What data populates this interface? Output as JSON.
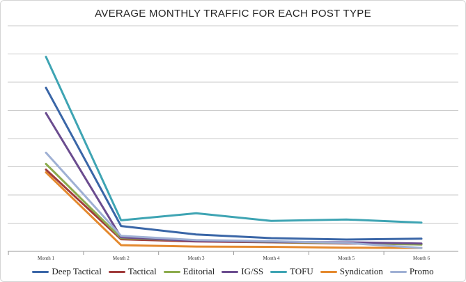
{
  "chart_data": {
    "type": "line",
    "title": "AVERAGE MONTHLY TRAFFIC FOR EACH POST TYPE",
    "xlabel": "",
    "ylabel": "",
    "categories": [
      "Month 1",
      "Month 2",
      "Month 3",
      "Month 4",
      "Month 5",
      "Month 6"
    ],
    "ylim": [
      0,
      8
    ],
    "grid": true,
    "legend_position": "bottom",
    "series": [
      {
        "name": "Deep Tactical",
        "color": "#3a66a7",
        "values": [
          5.8,
          0.9,
          0.6,
          0.47,
          0.42,
          0.45
        ]
      },
      {
        "name": "Tactical",
        "color": "#a03b3b",
        "values": [
          2.9,
          0.43,
          0.35,
          0.32,
          0.28,
          0.25
        ]
      },
      {
        "name": "Editorial",
        "color": "#8cab4c",
        "values": [
          3.1,
          0.47,
          0.38,
          0.33,
          0.3,
          0.24
        ]
      },
      {
        "name": "IG/SS",
        "color": "#6b4c8f",
        "values": [
          4.9,
          0.5,
          0.37,
          0.34,
          0.32,
          0.28
        ]
      },
      {
        "name": "TOFU",
        "color": "#3ea4b3",
        "values": [
          6.9,
          1.1,
          1.35,
          1.08,
          1.13,
          1.02
        ]
      },
      {
        "name": "Syndication",
        "color": "#e4892e",
        "values": [
          2.8,
          0.22,
          0.17,
          0.16,
          0.13,
          0.12
        ]
      },
      {
        "name": "Promo",
        "color": "#9fb0d4",
        "values": [
          3.5,
          0.55,
          0.4,
          0.36,
          0.3,
          0.12
        ]
      }
    ]
  }
}
